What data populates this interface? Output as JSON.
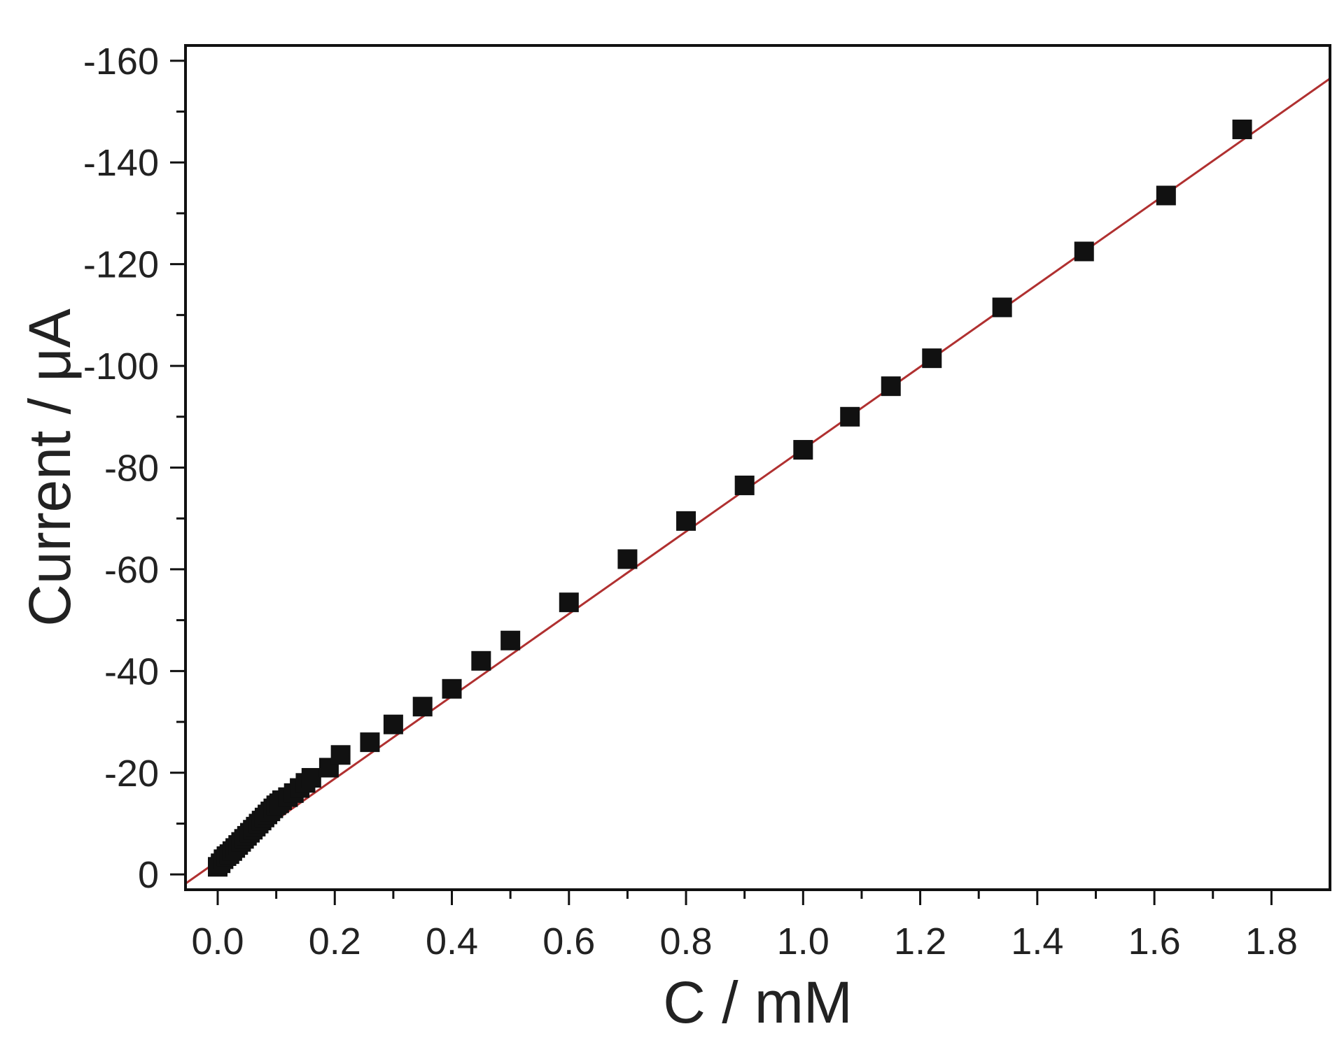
{
  "chart_data": {
    "type": "scatter",
    "title": "",
    "xlabel": "C / mM",
    "ylabel": "Current / μA",
    "xlim": [
      -0.055,
      1.9
    ],
    "ylim": [
      3,
      -163
    ],
    "y_axis_reversed": true,
    "grid": false,
    "x_ticks": [
      0.0,
      0.2,
      0.4,
      0.6,
      0.8,
      1.0,
      1.2,
      1.4,
      1.6,
      1.8
    ],
    "x_tick_labels": [
      "0.0",
      "0.2",
      "0.4",
      "0.6",
      "0.8",
      "1.0",
      "1.2",
      "1.4",
      "1.6",
      "1.8"
    ],
    "y_ticks": [
      0,
      -20,
      -40,
      -60,
      -80,
      -100,
      -120,
      -140,
      -160
    ],
    "y_tick_labels": [
      "0",
      "-20",
      "-40",
      "-60",
      "-80",
      "-100",
      "-120",
      "-140",
      "-160"
    ],
    "series": [
      {
        "marker": "square",
        "color": "#111111",
        "x": [
          0.0,
          0.005,
          0.01,
          0.015,
          0.02,
          0.025,
          0.03,
          0.035,
          0.04,
          0.045,
          0.05,
          0.055,
          0.06,
          0.065,
          0.07,
          0.075,
          0.08,
          0.085,
          0.09,
          0.095,
          0.1,
          0.105,
          0.11,
          0.12,
          0.13,
          0.14,
          0.15,
          0.16,
          0.19,
          0.21,
          0.26,
          0.3,
          0.35,
          0.4,
          0.45,
          0.5,
          0.6,
          0.7,
          0.8,
          0.9,
          1.0,
          1.08,
          1.15,
          1.22,
          1.34,
          1.48,
          1.62,
          1.75
        ],
        "y": [
          -1.5,
          -2.2,
          -3.0,
          -3.6,
          -4.0,
          -4.6,
          -5.2,
          -5.8,
          -6.4,
          -7.0,
          -7.6,
          -8.2,
          -8.8,
          -9.4,
          -10.0,
          -10.6,
          -11.2,
          -11.8,
          -12.4,
          -13.0,
          -13.6,
          -14.0,
          -14.6,
          -15.2,
          -16.0,
          -17.0,
          -18.0,
          -19.0,
          -21.0,
          -23.5,
          -26.0,
          -29.5,
          -33.0,
          -36.5,
          -42.0,
          -46.0,
          -53.5,
          -62.0,
          -69.5,
          -76.5,
          -83.5,
          -90.0,
          -96.0,
          -101.5,
          -111.5,
          -122.5,
          -133.5,
          -146.5
        ]
      }
    ],
    "fit_line": {
      "color": "#b03030",
      "x": [
        -0.055,
        1.9
      ],
      "y": [
        1.8,
        -156.5
      ]
    }
  }
}
